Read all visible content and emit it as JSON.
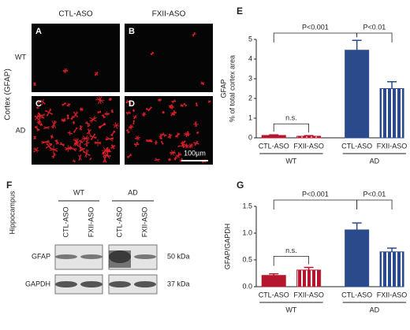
{
  "figure": {
    "images": {
      "columns": [
        "CTL-ASO",
        "FXII-ASO"
      ],
      "rows": [
        "WT",
        "AD"
      ],
      "panels": [
        "A",
        "B",
        "C",
        "D"
      ],
      "side_label": "Cortex (GFAP)",
      "scale_bar": "100µm"
    },
    "blot": {
      "panel": "F",
      "side_label": "Hippocampus",
      "groups": [
        "WT",
        "AD"
      ],
      "lanes": [
        "CTL-ASO",
        "FXII-ASO",
        "CTL-ASO",
        "FXII-ASO"
      ],
      "rows": [
        "GFAP",
        "GAPDH"
      ],
      "sizes": [
        "50 kDa",
        "37 kDa"
      ]
    }
  },
  "chart_data": [
    {
      "type": "bar",
      "panel": "E",
      "ylabel": [
        "GFAP",
        "% of total cortex area"
      ],
      "categories": [
        "CTL-ASO",
        "FXII-ASO",
        "CTL-ASO",
        "FXII-ASO"
      ],
      "groups": [
        "WT",
        "AD"
      ],
      "values": [
        0.12,
        0.08,
        4.45,
        2.5
      ],
      "errors": [
        0.03,
        0.03,
        0.5,
        0.35
      ],
      "colors": [
        "#b5162e",
        "#b5162e",
        "#2b4a8b",
        "#2b4a8b"
      ],
      "hatched": [
        false,
        true,
        false,
        true
      ],
      "annotations": [
        "n.s.",
        "P<0.001",
        "P<0.01"
      ],
      "ylim": [
        0,
        5
      ],
      "yticks": [
        0,
        1,
        2,
        3,
        4,
        5
      ]
    },
    {
      "type": "bar",
      "panel": "G",
      "ylabel": [
        "GFAP/GAPDH"
      ],
      "categories": [
        "CTL-ASO",
        "FXII-ASO",
        "CTL-ASO",
        "FXII-ASO"
      ],
      "groups": [
        "WT",
        "AD"
      ],
      "values": [
        0.21,
        0.31,
        1.06,
        0.65
      ],
      "errors": [
        0.03,
        0.05,
        0.13,
        0.07
      ],
      "colors": [
        "#b5162e",
        "#b5162e",
        "#2b4a8b",
        "#2b4a8b"
      ],
      "hatched": [
        false,
        true,
        false,
        true
      ],
      "annotations": [
        "n.s.",
        "P<0.001",
        "P<0.01"
      ],
      "ylim": [
        0,
        1.5
      ],
      "yticks": [
        {
          "value": 0,
          "label": "0.0"
        },
        0.5,
        {
          "value": 1,
          "label": "1.0"
        },
        1.5
      ]
    }
  ]
}
